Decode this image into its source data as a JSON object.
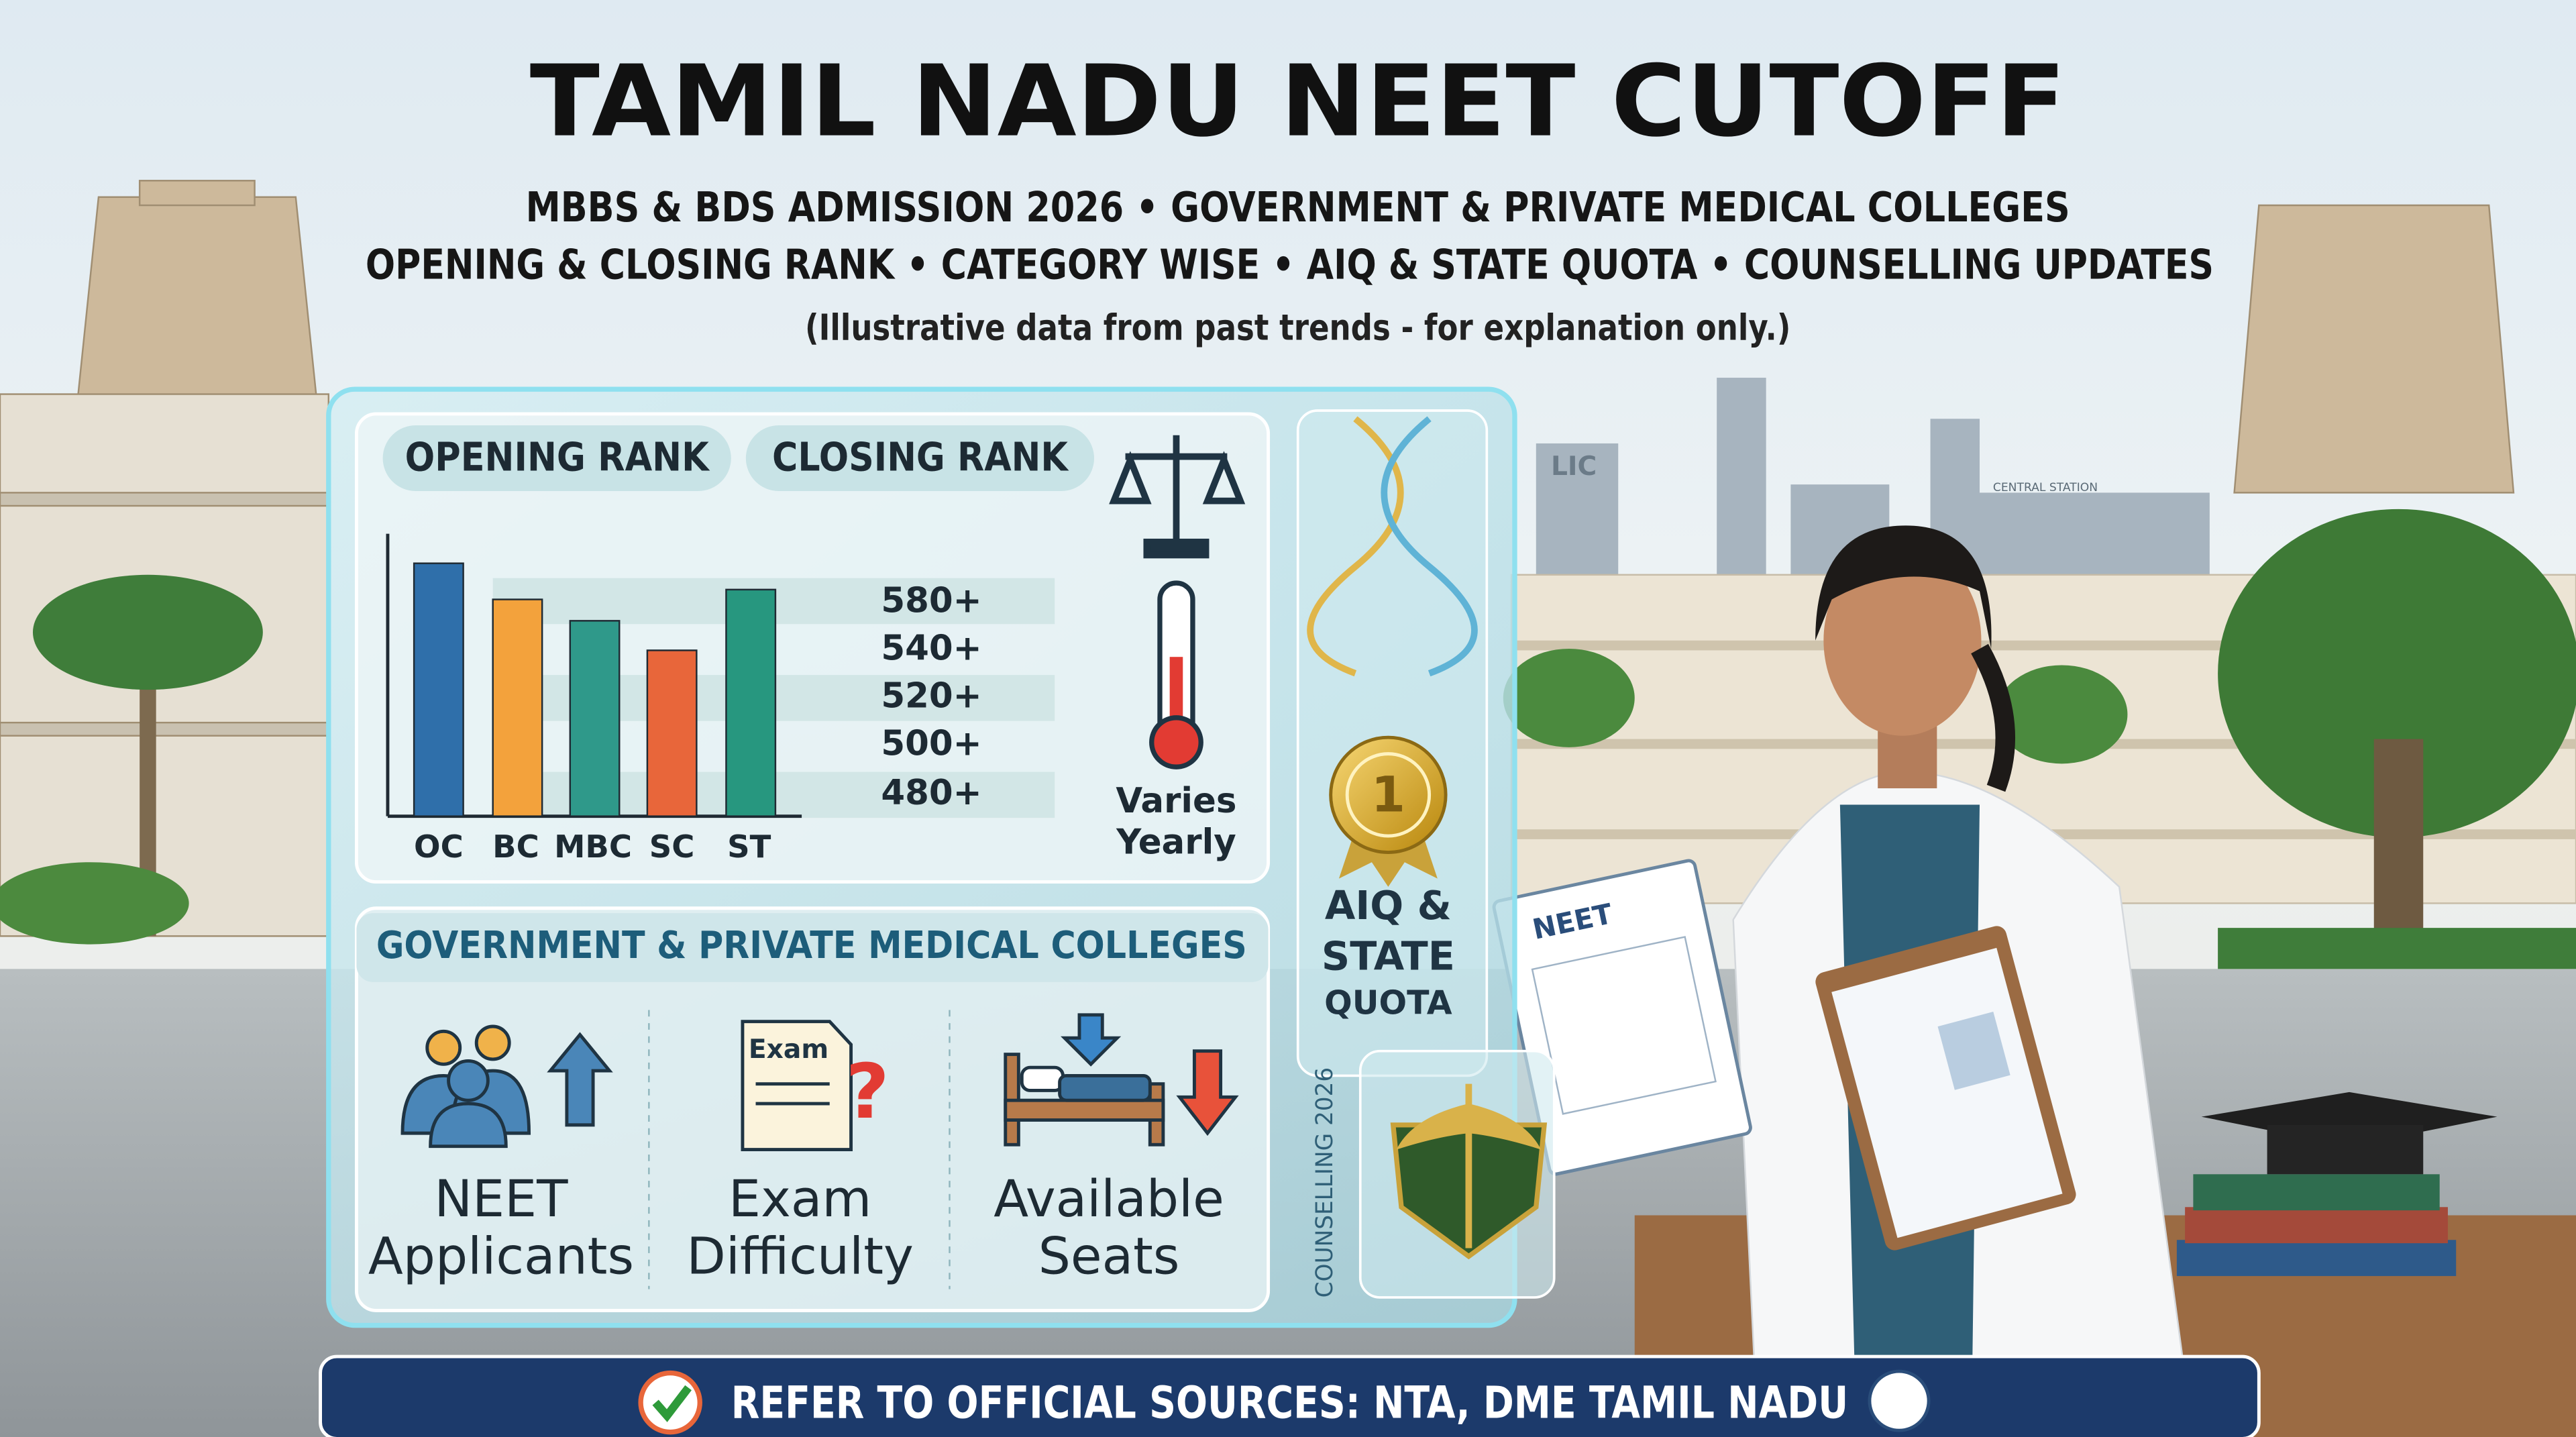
{
  "header": {
    "title": "TAMIL NADU NEET CUTOFF",
    "subtitle_lines": [
      "MBBS & BDS ADMISSION 2026 • GOVERNMENT & PRIVATE MEDICAL COLLEGES",
      "OPENING & CLOSING RANK • CATEGORY WISE • AIQ & STATE QUOTA • COUNSELLING UPDATES"
    ],
    "note": "(Illustrative data from past trends - for explanation only.)"
  },
  "rank_panel": {
    "tabs": [
      "OPENING RANK",
      "CLOSING RANK"
    ],
    "score_labels": [
      "580+",
      "540+",
      "520+",
      "500+",
      "480+"
    ],
    "categories": [
      "OC",
      "BC",
      "MBC",
      "SC",
      "ST"
    ],
    "trend_note": [
      "Varies",
      "Yearly"
    ]
  },
  "quota_panel": {
    "badge": "1",
    "label_lines": [
      "AIQ &",
      "STATE",
      "QUOTA"
    ],
    "vertical_text": "COUNSELLING 2026"
  },
  "colleges_panel": {
    "heading": "GOVERNMENT & PRIVATE MEDICAL COLLEGES",
    "exam_icon_text": "Exam",
    "factors": [
      {
        "lines": [
          "NEET",
          "Applicants"
        ]
      },
      {
        "lines": [
          "Exam",
          "Difficulty"
        ]
      },
      {
        "lines": [
          "Available",
          "Seats"
        ]
      }
    ]
  },
  "scene": {
    "signs": [
      "LIC",
      "CENTRAL STATION"
    ],
    "clipboard": "NEET"
  },
  "footer": {
    "text": "REFER TO OFFICIAL SOURCES: NTA, DME TAMIL NADU"
  }
}
